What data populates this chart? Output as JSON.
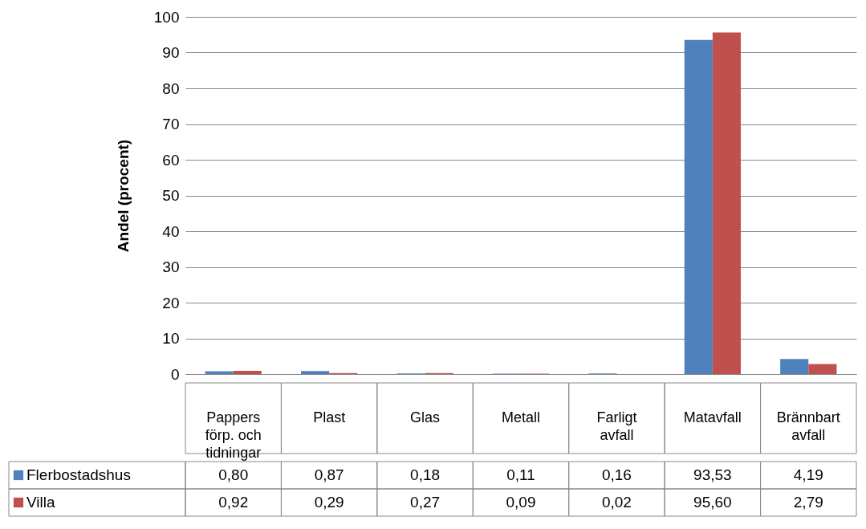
{
  "chart_data": {
    "type": "bar",
    "ylabel": "Andel (procent)",
    "categories": [
      "Pappers förp. och tidningar",
      "Plast",
      "Glas",
      "Metall",
      "Farligt avfall",
      "Matavfall",
      "Brännbart avfall"
    ],
    "series": [
      {
        "name": "Flerbostadshus",
        "color": "#4f81bd",
        "values": [
          0.8,
          0.87,
          0.18,
          0.11,
          0.16,
          93.53,
          4.19
        ],
        "value_labels": [
          "0,80",
          "0,87",
          "0,18",
          "0,11",
          "0,16",
          "93,53",
          "4,19"
        ]
      },
      {
        "name": "Villa",
        "color": "#c0504d",
        "values": [
          0.92,
          0.29,
          0.27,
          0.09,
          0.02,
          95.6,
          2.79
        ],
        "value_labels": [
          "0,92",
          "0,29",
          "0,27",
          "0,09",
          "0,02",
          "95,60",
          "2,79"
        ]
      }
    ],
    "ylim": [
      0,
      100
    ],
    "yticks": [
      0,
      10,
      20,
      30,
      40,
      50,
      60,
      70,
      80,
      90,
      100
    ],
    "grid": "y",
    "legend": "bottom left"
  }
}
